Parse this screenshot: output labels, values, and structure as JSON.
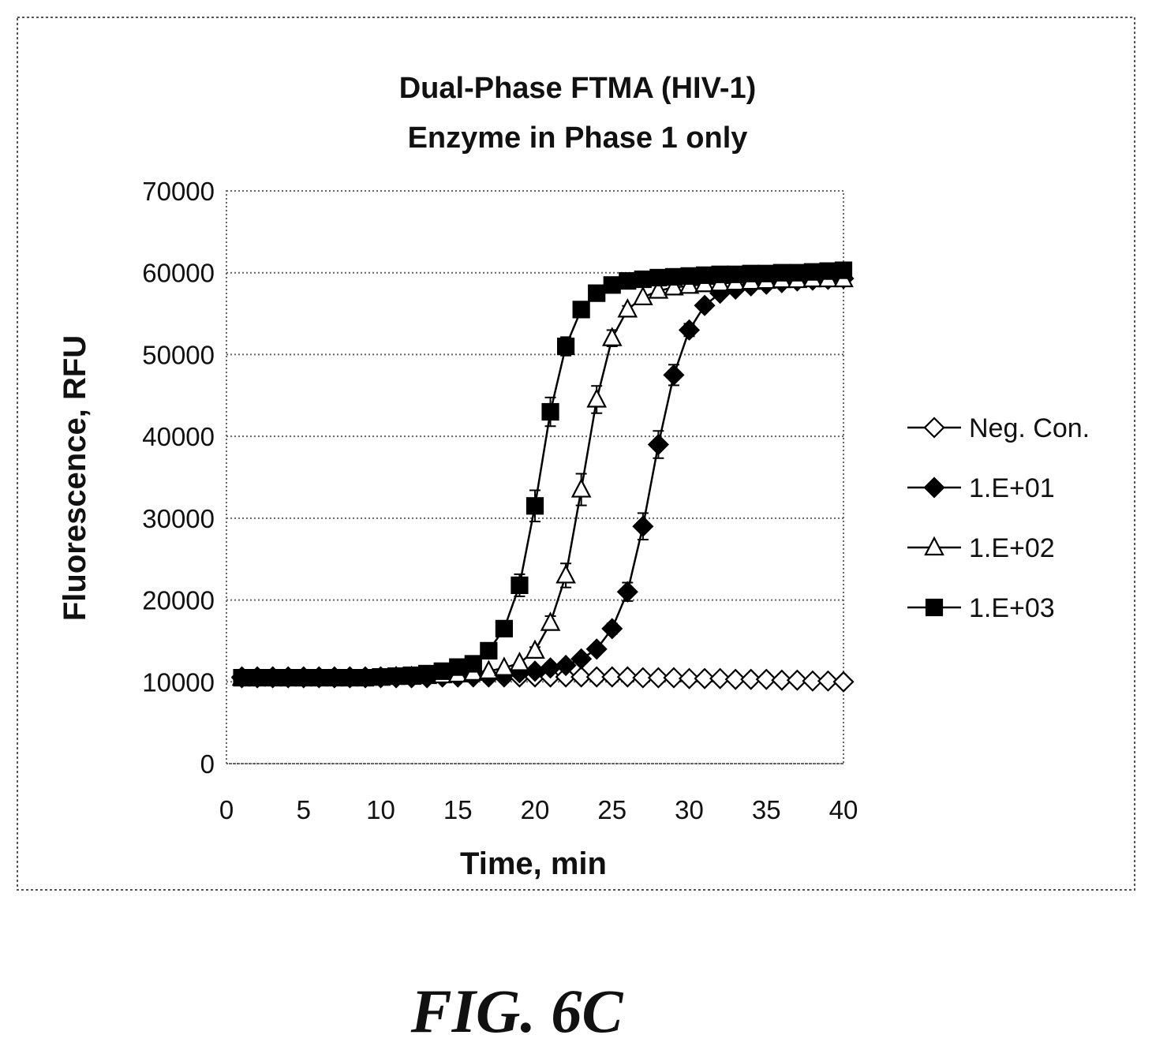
{
  "figure_label": "FIG. 6C",
  "chart_data": {
    "type": "line",
    "title": "Dual-Phase FTMA (HIV-1)",
    "subtitle": "Enzyme in Phase 1 only",
    "xlabel": "Time, min",
    "ylabel": "Fluorescence, RFU",
    "xlim": [
      0,
      40
    ],
    "ylim": [
      0,
      70000
    ],
    "x_ticks": [
      "0",
      "5",
      "10",
      "15",
      "20",
      "25",
      "30",
      "35",
      "40"
    ],
    "y_ticks": [
      "0",
      "10000",
      "20000",
      "30000",
      "40000",
      "50000",
      "60000",
      "70000"
    ],
    "grid": "horizontal dotted",
    "legend_position": "right",
    "x": [
      1,
      2,
      3,
      4,
      5,
      6,
      7,
      8,
      9,
      10,
      11,
      12,
      13,
      14,
      15,
      16,
      17,
      18,
      19,
      20,
      21,
      22,
      23,
      24,
      25,
      26,
      27,
      28,
      29,
      30,
      31,
      32,
      33,
      34,
      35,
      36,
      37,
      38,
      39,
      40
    ],
    "series": [
      {
        "name": "Neg. Con.",
        "marker": "diamond-open",
        "values": [
          10600,
          10600,
          10600,
          10600,
          10600,
          10600,
          10600,
          10600,
          10600,
          10600,
          10600,
          10600,
          10600,
          10600,
          10600,
          10600,
          10600,
          10600,
          10600,
          10600,
          10600,
          10600,
          10600,
          10600,
          10600,
          10600,
          10500,
          10500,
          10500,
          10400,
          10400,
          10400,
          10300,
          10300,
          10300,
          10200,
          10200,
          10100,
          10100,
          10000
        ]
      },
      {
        "name": "1.E+01",
        "marker": "diamond-filled",
        "values": [
          10500,
          10500,
          10500,
          10500,
          10500,
          10500,
          10500,
          10500,
          10500,
          10500,
          10500,
          10500,
          10500,
          10600,
          10600,
          10700,
          10800,
          10900,
          11100,
          11300,
          11700,
          12000,
          12800,
          14000,
          16500,
          21000,
          29000,
          39000,
          47500,
          53000,
          56000,
          57500,
          58000,
          58400,
          58600,
          58800,
          59000,
          59100,
          59200,
          59300
        ]
      },
      {
        "name": "1.E+02",
        "marker": "triangle-open",
        "values": [
          10500,
          10500,
          10500,
          10500,
          10500,
          10500,
          10500,
          10500,
          10500,
          10500,
          10600,
          10600,
          10700,
          10800,
          10900,
          11100,
          11300,
          11700,
          12300,
          13800,
          17200,
          23000,
          33500,
          44500,
          52000,
          55500,
          57000,
          57800,
          58200,
          58400,
          58600,
          58700,
          58800,
          58900,
          59000,
          59100,
          59100,
          59200,
          59200,
          59200
        ]
      },
      {
        "name": "1.E+03",
        "marker": "square-filled",
        "values": [
          10500,
          10500,
          10500,
          10500,
          10500,
          10500,
          10500,
          10500,
          10500,
          10600,
          10700,
          10800,
          11000,
          11300,
          11800,
          12200,
          13800,
          16500,
          21800,
          31500,
          43000,
          51000,
          55500,
          57500,
          58500,
          59000,
          59200,
          59400,
          59500,
          59600,
          59700,
          59800,
          59800,
          59900,
          59900,
          60000,
          60000,
          60100,
          60200,
          60300
        ]
      }
    ]
  }
}
